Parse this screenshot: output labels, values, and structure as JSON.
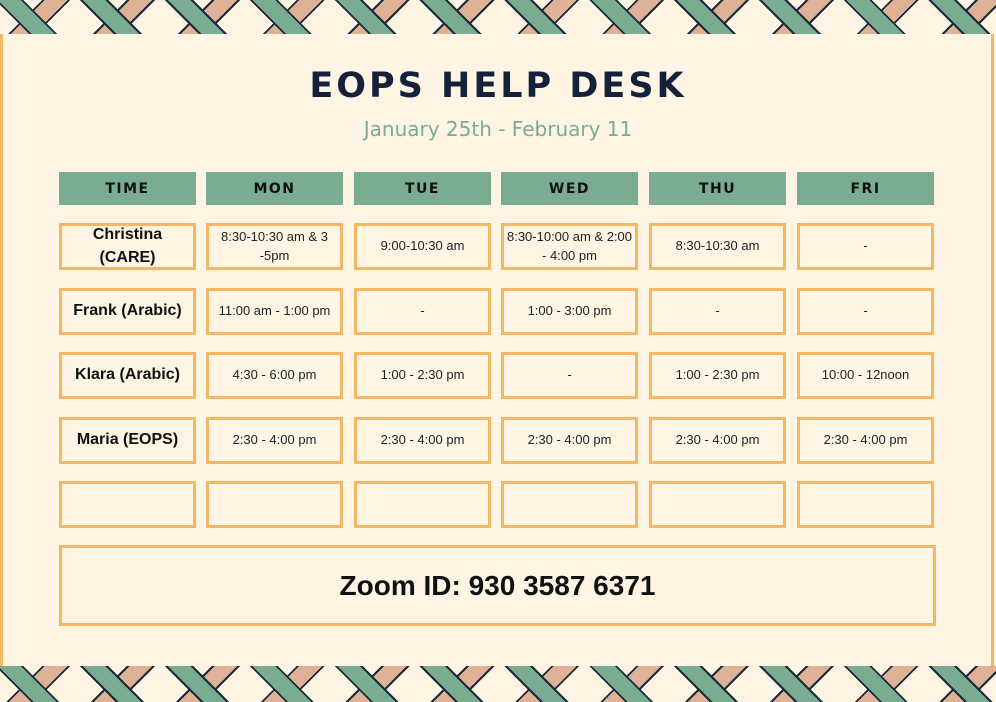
{
  "title": "EOPS HELP DESK",
  "subtitle": "January 25th - February 11",
  "columns": [
    "TIME",
    "MON",
    "TUE",
    "WED",
    "THU",
    "FRI"
  ],
  "rows": [
    {
      "name": "Christina (CARE)",
      "slots": [
        "8:30-10:30 am & 3 -5pm",
        "9:00-10:30 am",
        "8:30-10:00 am & 2:00 - 4:00 pm",
        "8:30-10:30 am",
        "-"
      ]
    },
    {
      "name": "Frank (Arabic)",
      "slots": [
        "11:00 am - 1:00 pm",
        "-",
        "1:00 - 3:00 pm",
        "-",
        "-"
      ]
    },
    {
      "name": "Klara (Arabic)",
      "slots": [
        "4:30 - 6:00 pm",
        "1:00 - 2:30 pm",
        "-",
        "1:00 - 2:30 pm",
        "10:00 - 12noon"
      ]
    },
    {
      "name": "Maria (EOPS)",
      "slots": [
        "2:30 - 4:00 pm",
        "2:30 - 4:00 pm",
        "2:30 - 4:00 pm",
        "2:30 - 4:00 pm",
        "2:30 - 4:00 pm"
      ]
    },
    {
      "name": "",
      "slots": [
        "",
        "",
        "",
        "",
        ""
      ]
    }
  ],
  "zoom_id": "Zoom ID: 930 3587 6371",
  "colors": {
    "header": "#7aac92",
    "border": "#f2b866",
    "background": "#fdf4e3",
    "title": "#14213a",
    "accent_tan": "#dfb298"
  }
}
